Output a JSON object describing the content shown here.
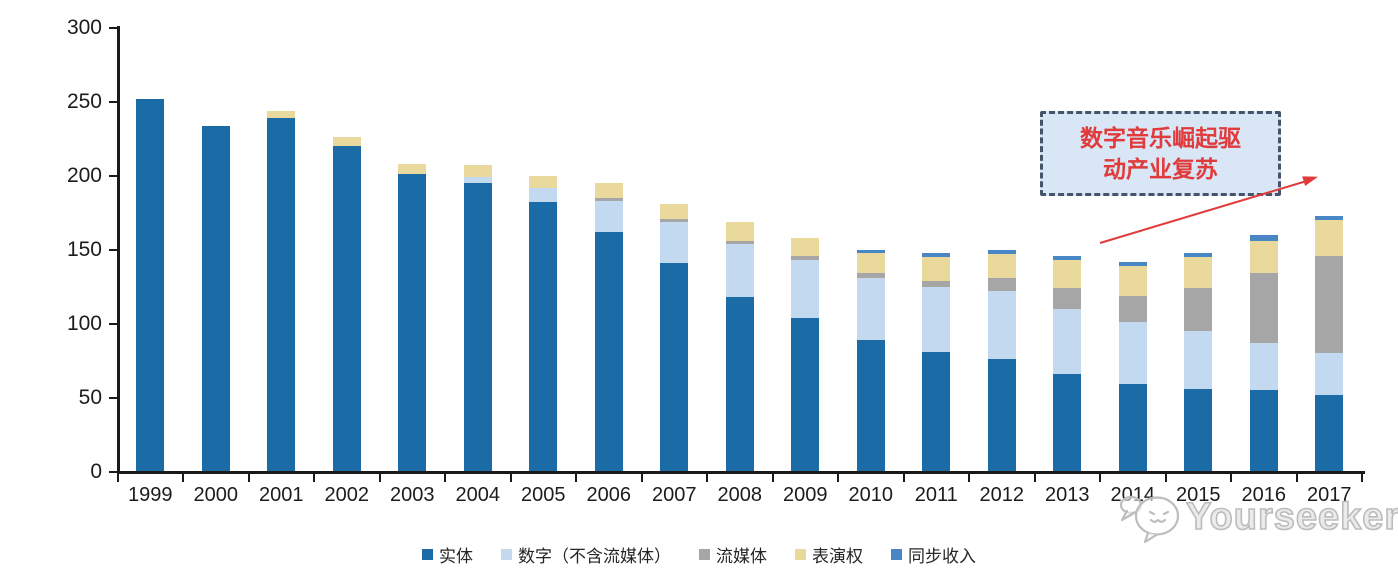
{
  "chart_data": {
    "type": "bar",
    "stacked": true,
    "categories": [
      "1999",
      "2000",
      "2001",
      "2002",
      "2003",
      "2004",
      "2005",
      "2006",
      "2007",
      "2008",
      "2009",
      "2010",
      "2011",
      "2012",
      "2013",
      "2014",
      "2015",
      "2016",
      "2017"
    ],
    "series": [
      {
        "name": "实体",
        "color": "#1b6ba6",
        "values": [
          252,
          234,
          239,
          220,
          201,
          195,
          182,
          162,
          141,
          118,
          104,
          89,
          81,
          76,
          66,
          59,
          56,
          55,
          52
        ]
      },
      {
        "name": "数字（不含流媒体）",
        "color": "#c3d9ef",
        "values": [
          0,
          0,
          0,
          0,
          0,
          4,
          10,
          21,
          28,
          36,
          39,
          42,
          44,
          46,
          44,
          42,
          39,
          32,
          28
        ]
      },
      {
        "name": "流媒体",
        "color": "#a6a6a6",
        "values": [
          0,
          0,
          0,
          0,
          0,
          0,
          0,
          2,
          2,
          2,
          3,
          3,
          4,
          9,
          14,
          18,
          29,
          47,
          66
        ]
      },
      {
        "name": "表演权",
        "color": "#e9d99c",
        "values": [
          0,
          0,
          5,
          6,
          7,
          8,
          8,
          10,
          10,
          13,
          12,
          14,
          16,
          16,
          19,
          20,
          21,
          22,
          24
        ]
      },
      {
        "name": "同步收入",
        "color": "#4886c6",
        "values": [
          0,
          0,
          0,
          0,
          0,
          0,
          0,
          0,
          0,
          0,
          0,
          2,
          3,
          3,
          3,
          3,
          3,
          4,
          3
        ]
      }
    ],
    "ylim": [
      0,
      300
    ],
    "yticks": [
      0,
      50,
      100,
      150,
      200,
      250,
      300
    ],
    "xlabel": "",
    "ylabel": "",
    "grid": false,
    "legend_position": "bottom",
    "axis_color": "#1a1a1a",
    "background": "#ffffff"
  },
  "annotation": {
    "line1": "数字音乐崛起驱",
    "line2": "动产业复苏",
    "text_color": "#e03a3a",
    "box_fill": "#d9e6f6",
    "box_border": "#44546a",
    "arrow_color": "#e03a3a"
  },
  "watermark": {
    "text": "Yourseeker"
  }
}
